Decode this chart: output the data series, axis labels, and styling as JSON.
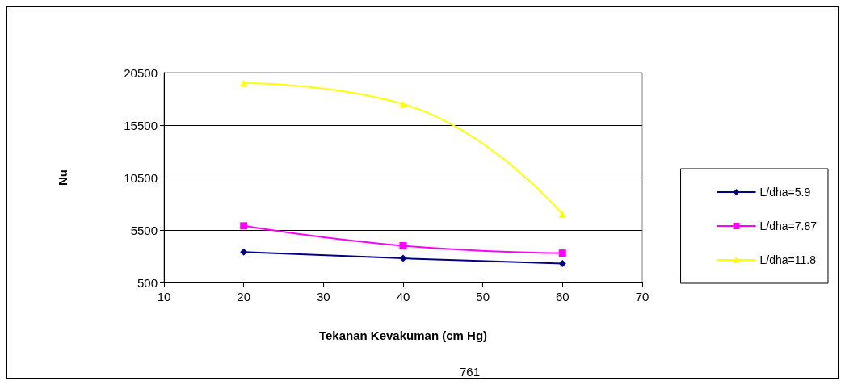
{
  "chart_data": {
    "type": "line",
    "xlabel": "Tekanan Kevakuman (cm Hg)",
    "ylabel": "Nu",
    "annotations": [
      "761"
    ],
    "x": [
      20,
      40,
      60
    ],
    "xlim": [
      10,
      70
    ],
    "xticks": [
      10,
      20,
      30,
      40,
      50,
      60,
      70
    ],
    "ylim": [
      500,
      20500
    ],
    "yticks": [
      500,
      5500,
      10500,
      15500,
      20500
    ],
    "grid": "y",
    "legend": "right",
    "series": [
      {
        "name": "L/dha=5.9",
        "color": "#000080",
        "marker": "diamond",
        "values": [
          3400,
          2800,
          2300
        ]
      },
      {
        "name": "L/dha=7.87",
        "color": "#ff00ff",
        "marker": "square",
        "values": [
          5900,
          4000,
          3300
        ]
      },
      {
        "name": "L/dha=11.8",
        "color": "#ffff00",
        "marker": "triangle",
        "values": [
          19500,
          17500,
          7000
        ]
      }
    ]
  }
}
